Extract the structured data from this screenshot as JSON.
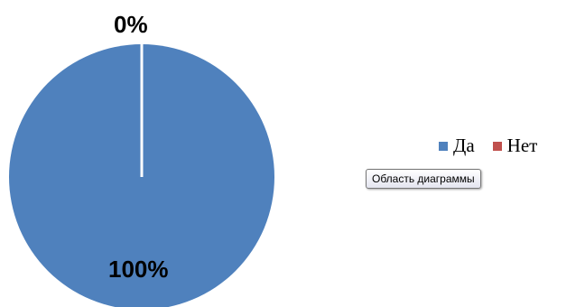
{
  "chart_data": {
    "type": "pie",
    "categories": [
      "Да",
      "Нет"
    ],
    "values": [
      100,
      0
    ],
    "data_labels": [
      "100%",
      "0%"
    ],
    "colors": [
      "#4f81bd",
      "#c0504d"
    ],
    "legend_position": "right"
  },
  "tooltip": {
    "text": "Область диаграммы"
  }
}
